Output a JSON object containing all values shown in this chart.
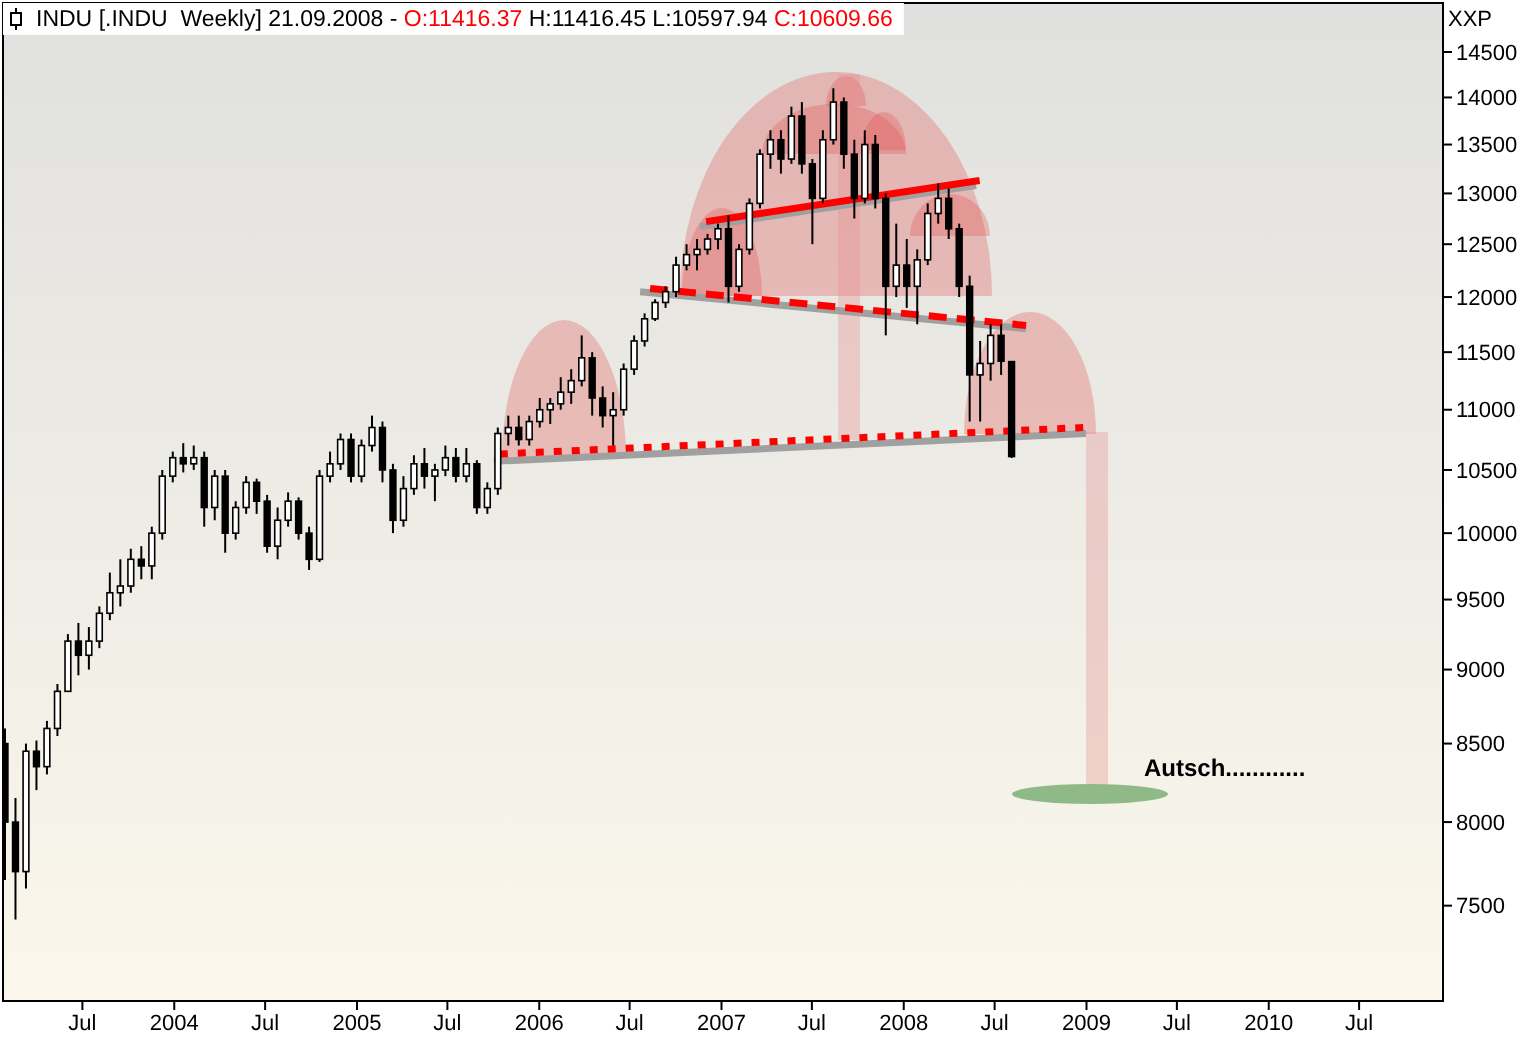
{
  "chart_data": {
    "type": "candlestick",
    "title": "INDU [.INDU  Weekly] 21.09.2008 - O:11416.37 H:11416.45 L:10597.94 C:10609.66",
    "ylabel": "XXP",
    "color": "#000000",
    "log": true,
    "xlim": [
      "2003-01-21",
      "2010-12-14"
    ],
    "ylim": [
      6973,
      15071
    ],
    "xticks": [
      {
        "value": "2003-07-01",
        "label": "Jul"
      },
      {
        "value": "2004-01-01",
        "label": "2004"
      },
      {
        "value": "2004-07-01",
        "label": "Jul"
      },
      {
        "value": "2005-01-01",
        "label": "2005"
      },
      {
        "value": "2005-07-01",
        "label": "Jul"
      },
      {
        "value": "2006-01-01",
        "label": "2006"
      },
      {
        "value": "2006-07-01",
        "label": "Jul"
      },
      {
        "value": "2007-01-01",
        "label": "2007"
      },
      {
        "value": "2007-07-01",
        "label": "Jul"
      },
      {
        "value": "2008-01-01",
        "label": "2008"
      },
      {
        "value": "2008-07-01",
        "label": "Jul"
      },
      {
        "value": "2009-01-01",
        "label": "2009"
      },
      {
        "value": "2009-07-01",
        "label": "Jul"
      },
      {
        "value": "2010-01-01",
        "label": "2010"
      },
      {
        "value": "2010-07-01",
        "label": "Jul"
      }
    ],
    "yticks": [
      7500,
      8000,
      8500,
      9000,
      9500,
      10000,
      10500,
      11000,
      11500,
      12000,
      12500,
      13000,
      13500,
      14000,
      14500
    ],
    "x": [
      "2003-01-27",
      "2003-02-17",
      "2003-03-10",
      "2003-03-31",
      "2003-04-21",
      "2003-05-12",
      "2003-06-02",
      "2003-06-23",
      "2003-07-14",
      "2003-08-04",
      "2003-08-25",
      "2003-09-15",
      "2003-10-06",
      "2003-10-27",
      "2003-11-17",
      "2003-12-08",
      "2003-12-29",
      "2004-01-19",
      "2004-02-09",
      "2004-03-01",
      "2004-03-22",
      "2004-04-12",
      "2004-05-03",
      "2004-05-24",
      "2004-06-14",
      "2004-07-05",
      "2004-07-26",
      "2004-08-16",
      "2004-09-06",
      "2004-09-27",
      "2004-10-18",
      "2004-11-08",
      "2004-11-29",
      "2004-12-20",
      "2005-01-10",
      "2005-01-31",
      "2005-02-21",
      "2005-03-14",
      "2005-04-04",
      "2005-04-25",
      "2005-05-16",
      "2005-06-06",
      "2005-06-27",
      "2005-07-18",
      "2005-08-08",
      "2005-08-29",
      "2005-09-19",
      "2005-10-10",
      "2005-10-31",
      "2005-11-21",
      "2005-12-12",
      "2006-01-02",
      "2006-01-23",
      "2006-02-13",
      "2006-03-06",
      "2006-03-27",
      "2006-04-17",
      "2006-05-08",
      "2006-05-29",
      "2006-06-19",
      "2006-07-10",
      "2006-07-31",
      "2006-08-21",
      "2006-09-11",
      "2006-10-02",
      "2006-10-23",
      "2006-11-13",
      "2006-12-04",
      "2006-12-25",
      "2007-01-15",
      "2007-02-05",
      "2007-02-26",
      "2007-03-19",
      "2007-04-09",
      "2007-04-30",
      "2007-05-21",
      "2007-06-11",
      "2007-07-02",
      "2007-07-23",
      "2007-08-13",
      "2007-09-03",
      "2007-09-24",
      "2007-10-15",
      "2007-11-05",
      "2007-11-26",
      "2007-12-17",
      "2008-01-07",
      "2008-01-28",
      "2008-02-18",
      "2008-03-10",
      "2008-03-31",
      "2008-04-21",
      "2008-05-12",
      "2008-06-02",
      "2008-06-23",
      "2008-07-14",
      "2008-08-04"
    ],
    "ohlc": [
      [
        8500,
        8600,
        7650,
        8000
      ],
      [
        8000,
        8150,
        7420,
        7700
      ],
      [
        7700,
        8500,
        7600,
        8450
      ],
      [
        8450,
        8520,
        8200,
        8350
      ],
      [
        8350,
        8650,
        8300,
        8600
      ],
      [
        8600,
        8900,
        8550,
        8850
      ],
      [
        8850,
        9250,
        8850,
        9200
      ],
      [
        9200,
        9330,
        8960,
        9100
      ],
      [
        9100,
        9300,
        9000,
        9200
      ],
      [
        9200,
        9450,
        9150,
        9400
      ],
      [
        9400,
        9700,
        9350,
        9550
      ],
      [
        9550,
        9800,
        9450,
        9600
      ],
      [
        9600,
        9880,
        9550,
        9800
      ],
      [
        9800,
        9900,
        9650,
        9750
      ],
      [
        9750,
        10050,
        9650,
        10000
      ],
      [
        10000,
        10500,
        9950,
        10450
      ],
      [
        10450,
        10650,
        10400,
        10600
      ],
      [
        10600,
        10720,
        10480,
        10550
      ],
      [
        10550,
        10700,
        10500,
        10600
      ],
      [
        10600,
        10650,
        10050,
        10200
      ],
      [
        10200,
        10500,
        10100,
        10450
      ],
      [
        10450,
        10500,
        9850,
        10000
      ],
      [
        10000,
        10250,
        9950,
        10200
      ],
      [
        10200,
        10450,
        10150,
        10400
      ],
      [
        10400,
        10430,
        10150,
        10250
      ],
      [
        10250,
        10300,
        9850,
        9900
      ],
      [
        9900,
        10200,
        9800,
        10100
      ],
      [
        10100,
        10320,
        10050,
        10250
      ],
      [
        10250,
        10280,
        9950,
        10000
      ],
      [
        10000,
        10050,
        9720,
        9800
      ],
      [
        9800,
        10500,
        9780,
        10450
      ],
      [
        10450,
        10650,
        10400,
        10550
      ],
      [
        10550,
        10800,
        10500,
        10750
      ],
      [
        10750,
        10800,
        10400,
        10450
      ],
      [
        10450,
        10750,
        10400,
        10700
      ],
      [
        10700,
        10950,
        10650,
        10850
      ],
      [
        10850,
        10900,
        10400,
        10500
      ],
      [
        10500,
        10550,
        10000,
        10100
      ],
      [
        10100,
        10450,
        10050,
        10350
      ],
      [
        10350,
        10620,
        10300,
        10550
      ],
      [
        10550,
        10680,
        10350,
        10450
      ],
      [
        10450,
        10550,
        10250,
        10500
      ],
      [
        10500,
        10700,
        10450,
        10600
      ],
      [
        10600,
        10680,
        10400,
        10450
      ],
      [
        10450,
        10680,
        10400,
        10550
      ],
      [
        10550,
        10580,
        10150,
        10200
      ],
      [
        10200,
        10400,
        10150,
        10350
      ],
      [
        10350,
        10850,
        10300,
        10800
      ],
      [
        10800,
        10950,
        10700,
        10850
      ],
      [
        10850,
        10950,
        10700,
        10750
      ],
      [
        10750,
        10950,
        10700,
        10900
      ],
      [
        10900,
        11100,
        10850,
        11000
      ],
      [
        11000,
        11100,
        10880,
        11050
      ],
      [
        11050,
        11280,
        11000,
        11150
      ],
      [
        11150,
        11350,
        11050,
        11250
      ],
      [
        11250,
        11650,
        11200,
        11450
      ],
      [
        11450,
        11500,
        10950,
        11100
      ],
      [
        11100,
        11200,
        10850,
        10950
      ],
      [
        10950,
        11150,
        10700,
        11000
      ],
      [
        11000,
        11400,
        10950,
        11350
      ],
      [
        11350,
        11650,
        11300,
        11600
      ],
      [
        11600,
        11850,
        11550,
        11800
      ],
      [
        11800,
        11980,
        11780,
        11950
      ],
      [
        11950,
        12100,
        11900,
        12050
      ],
      [
        12050,
        12380,
        12000,
        12300
      ],
      [
        12300,
        12500,
        12250,
        12400
      ],
      [
        12400,
        12550,
        12250,
        12450
      ],
      [
        12450,
        12600,
        12400,
        12550
      ],
      [
        12550,
        12700,
        12450,
        12650
      ],
      [
        12650,
        12780,
        11950,
        12100
      ],
      [
        12100,
        12500,
        12050,
        12450
      ],
      [
        12450,
        12950,
        12400,
        12900
      ],
      [
        12900,
        13450,
        12850,
        13400
      ],
      [
        13400,
        13650,
        13250,
        13550
      ],
      [
        13550,
        13650,
        13200,
        13350
      ],
      [
        13350,
        13900,
        13300,
        13800
      ],
      [
        13800,
        13950,
        13200,
        13300
      ],
      [
        13300,
        13350,
        12500,
        12950
      ],
      [
        12950,
        13650,
        12900,
        13550
      ],
      [
        13550,
        14100,
        13500,
        13950
      ],
      [
        13950,
        14000,
        13250,
        13400
      ],
      [
        13400,
        13550,
        12750,
        12950
      ],
      [
        12950,
        13650,
        12900,
        13500
      ],
      [
        13500,
        13600,
        12850,
        12950
      ],
      [
        12950,
        13000,
        11650,
        12100
      ],
      [
        12100,
        12700,
        12000,
        12300
      ],
      [
        12300,
        12550,
        11900,
        12100
      ],
      [
        12100,
        12450,
        11750,
        12350
      ],
      [
        12350,
        12900,
        12300,
        12800
      ],
      [
        12800,
        13100,
        12700,
        12950
      ],
      [
        12950,
        13050,
        12550,
        12650
      ],
      [
        12650,
        12700,
        12000,
        12100
      ],
      [
        12100,
        12200,
        10900,
        11300
      ],
      [
        11300,
        11600,
        10900,
        11400
      ],
      [
        11400,
        11750,
        11250,
        11650
      ],
      [
        11650,
        11750,
        11300,
        11420
      ],
      [
        11416.37,
        11416.45,
        10597.94,
        10609.66
      ]
    ],
    "series": [
      {
        "type": "line",
        "color": "#a0a0a0",
        "line_style": "solid",
        "x": [
          "2006-11-19",
          "2008-05-25"
        ],
        "values": [
          12670,
          13080
        ]
      },
      {
        "type": "line",
        "color": "#a0a0a0",
        "line_style": "solid",
        "x": [
          "2006-07-22",
          "2008-09-02"
        ],
        "values": [
          12050,
          11710
        ]
      },
      {
        "type": "line",
        "color": "#a0a0a0",
        "line_style": "solid",
        "x": [
          "2005-10-02",
          "2008-12-31"
        ],
        "values": [
          10570,
          10800
        ]
      },
      {
        "type": "line",
        "color": "#ff0000",
        "line_style": "solid",
        "x": [
          "2006-12-01",
          "2008-06-01"
        ],
        "values": [
          12720,
          13130
        ]
      },
      {
        "type": "line",
        "color": "#ff0000",
        "line_style": "dashed",
        "x": [
          "2006-08-11",
          "2008-09-02"
        ],
        "values": [
          12080,
          11740
        ]
      },
      {
        "type": "line",
        "color": "#ff0000",
        "line_style": "dotted",
        "x": [
          "2005-10-14",
          "2008-12-27"
        ],
        "values": [
          10630,
          10850
        ]
      }
    ],
    "annotations": [
      "Autsch............"
    ]
  }
}
